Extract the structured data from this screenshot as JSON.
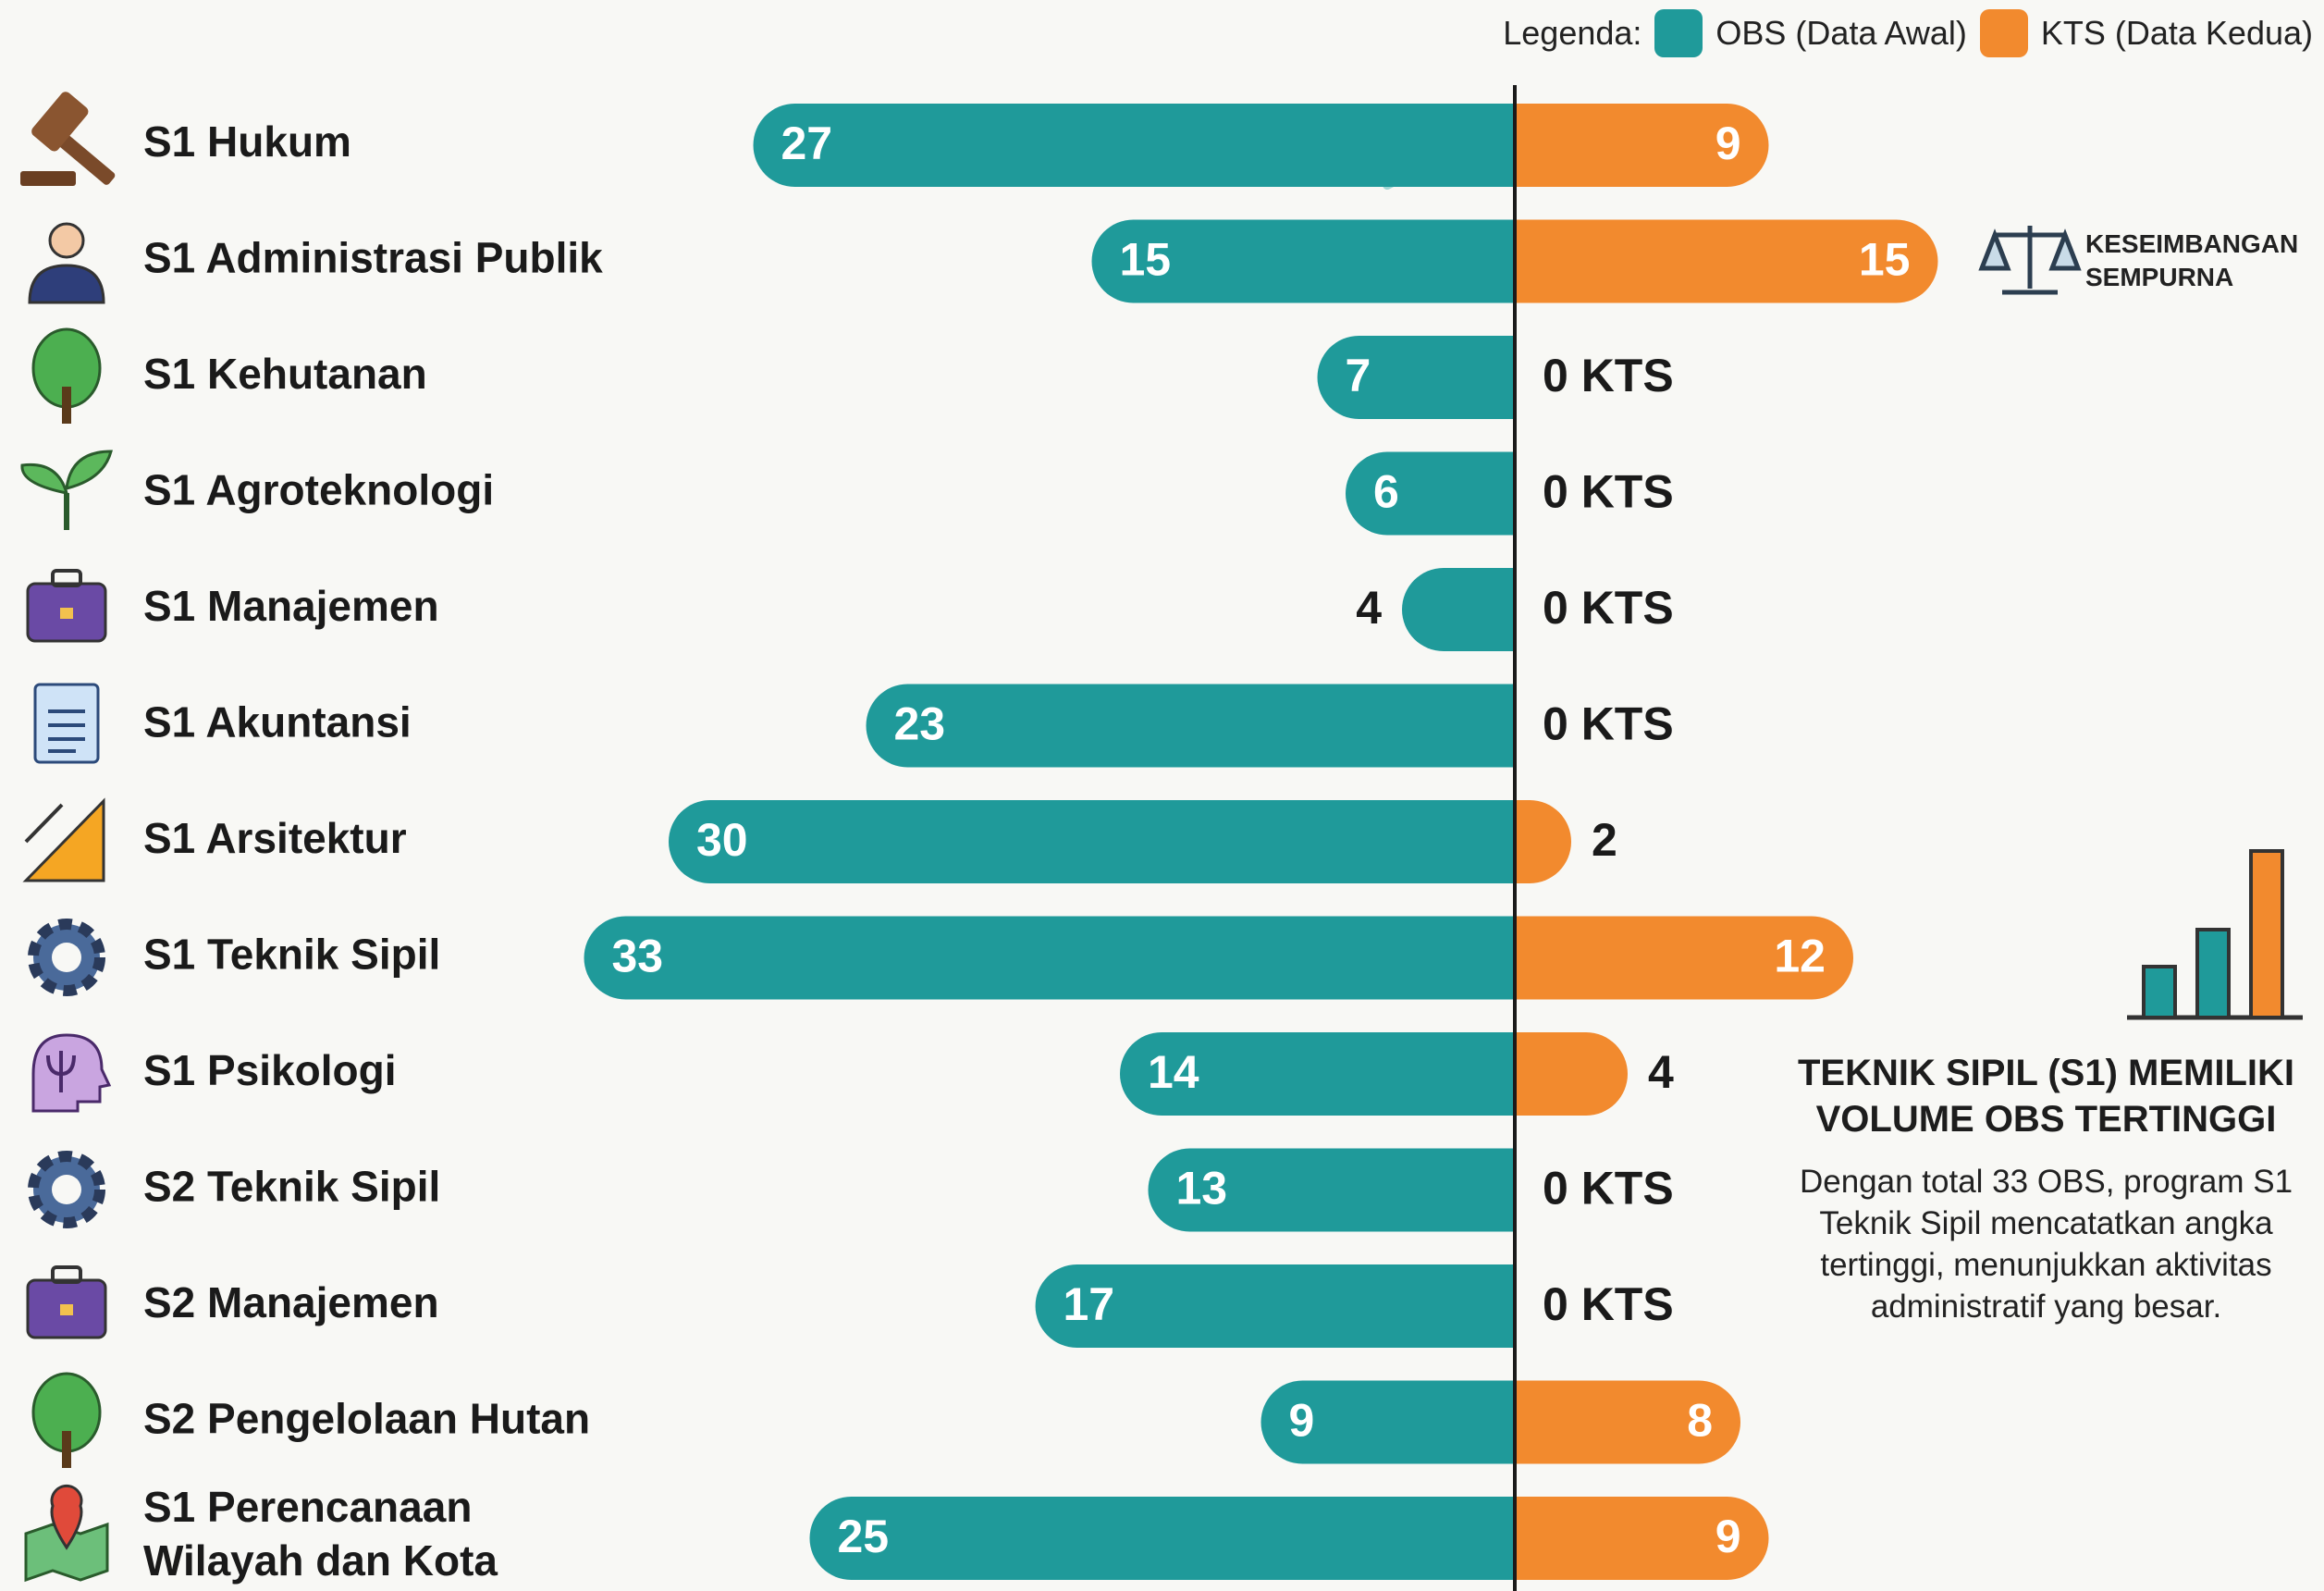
{
  "chart_data": {
    "type": "bar",
    "legend_title": "Legenda:",
    "categories": [
      "S1 Hukum",
      "S1 Administrasi Publik",
      "S1 Kehutanan",
      "S1 Agroteknologi",
      "S1 Manajemen",
      "S1 Akuntansi",
      "S1 Arsitektur",
      "S1 Teknik Sipil",
      "S1 Psikologi",
      "S2 Teknik Sipil",
      "S2 Manajemen",
      "S2 Pengelolaan Hutan",
      "S1 Perencanaan Wilayah dan Kota"
    ],
    "series": [
      {
        "name": "OBS (Data Awal)",
        "color": "#1f9a9a",
        "values": [
          27,
          15,
          7,
          6,
          4,
          23,
          30,
          33,
          14,
          13,
          17,
          9,
          25
        ]
      },
      {
        "name": "KTS (Data Kedua)",
        "color": "#f28a2e",
        "values": [
          9,
          15,
          0,
          0,
          0,
          0,
          2,
          12,
          4,
          0,
          0,
          8,
          9
        ],
        "value_labels": [
          "9",
          "15",
          "0 KTS",
          "0 KTS",
          "0 KTS",
          "0 KTS",
          "2",
          "12",
          "4",
          "0 KTS",
          "0 KTS",
          "8",
          "9"
        ]
      }
    ],
    "annotation": "KESEIMBANGAN SEMPURNA",
    "callout": {
      "title": "TEKNIK SIPIL (S1) MEMILIKI VOLUME OBS TERTINGGI",
      "text": "Dengan total 33 OBS, program S1 Teknik Sipil mencatatkan angka tertinggi, menunjukkan aktivitas administratif yang besar."
    }
  }
}
